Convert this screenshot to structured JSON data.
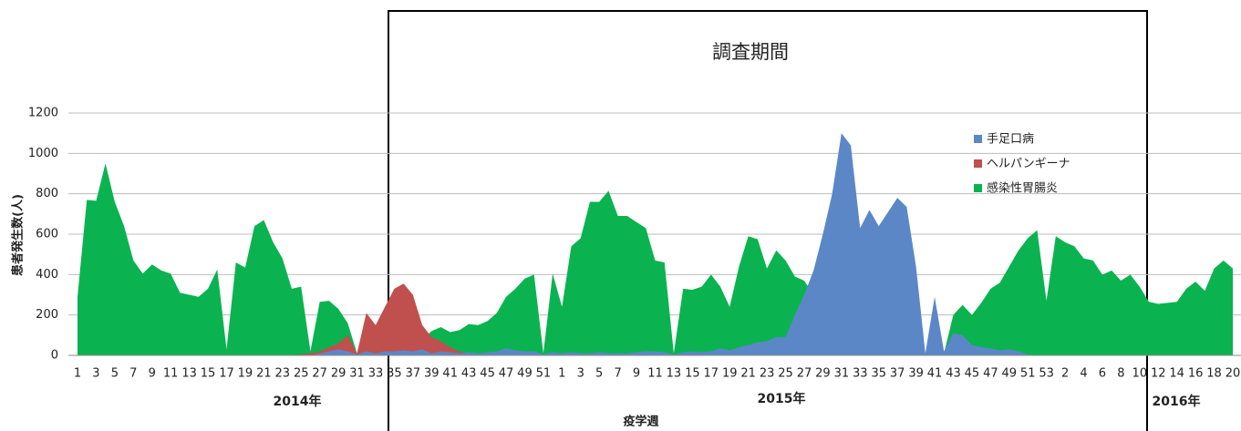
{
  "chart_data": {
    "type": "area",
    "annotation": "調査期間",
    "xlabel": "疫学週",
    "ylabel": "患者発生数(人)",
    "year_labels": [
      "2014年",
      "2015年",
      "2016年"
    ],
    "ylim": [
      0,
      1200
    ],
    "yticks": [
      0,
      200,
      400,
      600,
      800,
      1000,
      1200
    ],
    "grid": true,
    "legend": "upper right",
    "categories": [
      "1",
      null,
      "3",
      null,
      "5",
      null,
      "7",
      null,
      "9",
      null,
      "11",
      null,
      "13",
      null,
      "15",
      null,
      "17",
      null,
      "19",
      null,
      "21",
      null,
      "23",
      null,
      "25",
      null,
      "27",
      null,
      "29",
      null,
      "31",
      null,
      "33",
      null,
      "35",
      null,
      "37",
      null,
      "39",
      null,
      "41",
      null,
      "43",
      null,
      "45",
      null,
      "47",
      null,
      "49",
      null,
      "51",
      null,
      "1",
      null,
      "3",
      null,
      "5",
      null,
      "7",
      null,
      "9",
      null,
      "11",
      null,
      "13",
      null,
      "15",
      null,
      "17",
      null,
      "19",
      null,
      "21",
      null,
      "23",
      null,
      "25",
      null,
      "27",
      null,
      "29",
      null,
      "31",
      null,
      "33",
      null,
      "35",
      null,
      "37",
      null,
      "39",
      null,
      "41",
      null,
      "43",
      null,
      "45",
      null,
      "47",
      null,
      "49",
      null,
      "51",
      null,
      "53",
      null,
      "2",
      null,
      "4",
      null,
      "6",
      null,
      "8",
      null,
      "10",
      null,
      "12",
      null,
      "14",
      null,
      "16",
      null,
      "18",
      null,
      "20"
    ],
    "series": [
      {
        "name": "手足口病",
        "color": "#5b87c7",
        "values": [
          0,
          0,
          0,
          0,
          0,
          0,
          0,
          0,
          0,
          0,
          0,
          0,
          0,
          0,
          0,
          0,
          0,
          0,
          0,
          0,
          0,
          0,
          0,
          0,
          0,
          0,
          10,
          20,
          30,
          20,
          5,
          20,
          10,
          20,
          20,
          25,
          20,
          30,
          10,
          20,
          15,
          10,
          15,
          10,
          15,
          20,
          35,
          25,
          20,
          20,
          5,
          15,
          10,
          15,
          10,
          10,
          15,
          10,
          10,
          10,
          15,
          20,
          20,
          15,
          5,
          15,
          20,
          15,
          20,
          35,
          25,
          40,
          50,
          65,
          70,
          90,
          90,
          200,
          300,
          420,
          600,
          800,
          1100,
          1040,
          630,
          720,
          640,
          710,
          780,
          735,
          440,
          10,
          290,
          20,
          110,
          100,
          50,
          40,
          35,
          25,
          30,
          20,
          5,
          0,
          0,
          0,
          0,
          0,
          0,
          0,
          0,
          0,
          0,
          0,
          0,
          0,
          0,
          0,
          0,
          0,
          0,
          0,
          0,
          0,
          0
        ]
      },
      {
        "name": "ヘルパンギーナ",
        "color": "#c0504d",
        "values": [
          0,
          0,
          0,
          0,
          0,
          0,
          0,
          0,
          0,
          0,
          0,
          0,
          0,
          0,
          0,
          0,
          0,
          0,
          0,
          0,
          0,
          0,
          0,
          0,
          5,
          10,
          20,
          40,
          60,
          100,
          10,
          210,
          150,
          240,
          330,
          355,
          300,
          150,
          90,
          70,
          40,
          20,
          10,
          0,
          0,
          0,
          0,
          0,
          0,
          0,
          0,
          0,
          0,
          0,
          0,
          0,
          0,
          0,
          0,
          0,
          0,
          0,
          0,
          0,
          0,
          0,
          0,
          0,
          0,
          0,
          0,
          0,
          0,
          0,
          0,
          0,
          0,
          0,
          0,
          0,
          0,
          0,
          0,
          0,
          0,
          0,
          0,
          0,
          0,
          0,
          0,
          0,
          0,
          0,
          0,
          0,
          0,
          0,
          0,
          0,
          0,
          0,
          0,
          0,
          0,
          0,
          0,
          0,
          0,
          0,
          0,
          0,
          0,
          0,
          0,
          0,
          0,
          0,
          0,
          0,
          0,
          0,
          0,
          0,
          0
        ]
      },
      {
        "name": "感染性胃腸炎",
        "color": "#0ab350",
        "values": [
          290,
          770,
          765,
          950,
          760,
          640,
          470,
          405,
          450,
          420,
          405,
          310,
          300,
          290,
          330,
          425,
          30,
          460,
          435,
          640,
          670,
          560,
          480,
          330,
          340,
          20,
          265,
          270,
          230,
          160,
          10,
          10,
          20,
          30,
          40,
          50,
          60,
          80,
          120,
          140,
          115,
          125,
          155,
          150,
          170,
          210,
          290,
          330,
          380,
          400,
          10,
          405,
          240,
          540,
          580,
          760,
          760,
          815,
          690,
          690,
          660,
          630,
          470,
          460,
          10,
          330,
          325,
          340,
          400,
          340,
          240,
          440,
          590,
          575,
          430,
          520,
          470,
          390,
          370,
          300,
          300,
          300,
          300,
          300,
          300,
          300,
          300,
          280,
          260,
          250,
          240,
          10,
          100,
          10,
          200,
          250,
          200,
          260,
          330,
          360,
          440,
          520,
          580,
          620,
          270,
          590,
          560,
          540,
          480,
          470,
          400,
          420,
          370,
          400,
          340,
          265,
          255,
          260,
          265,
          330,
          365,
          320,
          430,
          470,
          430
        ]
      }
    ]
  }
}
